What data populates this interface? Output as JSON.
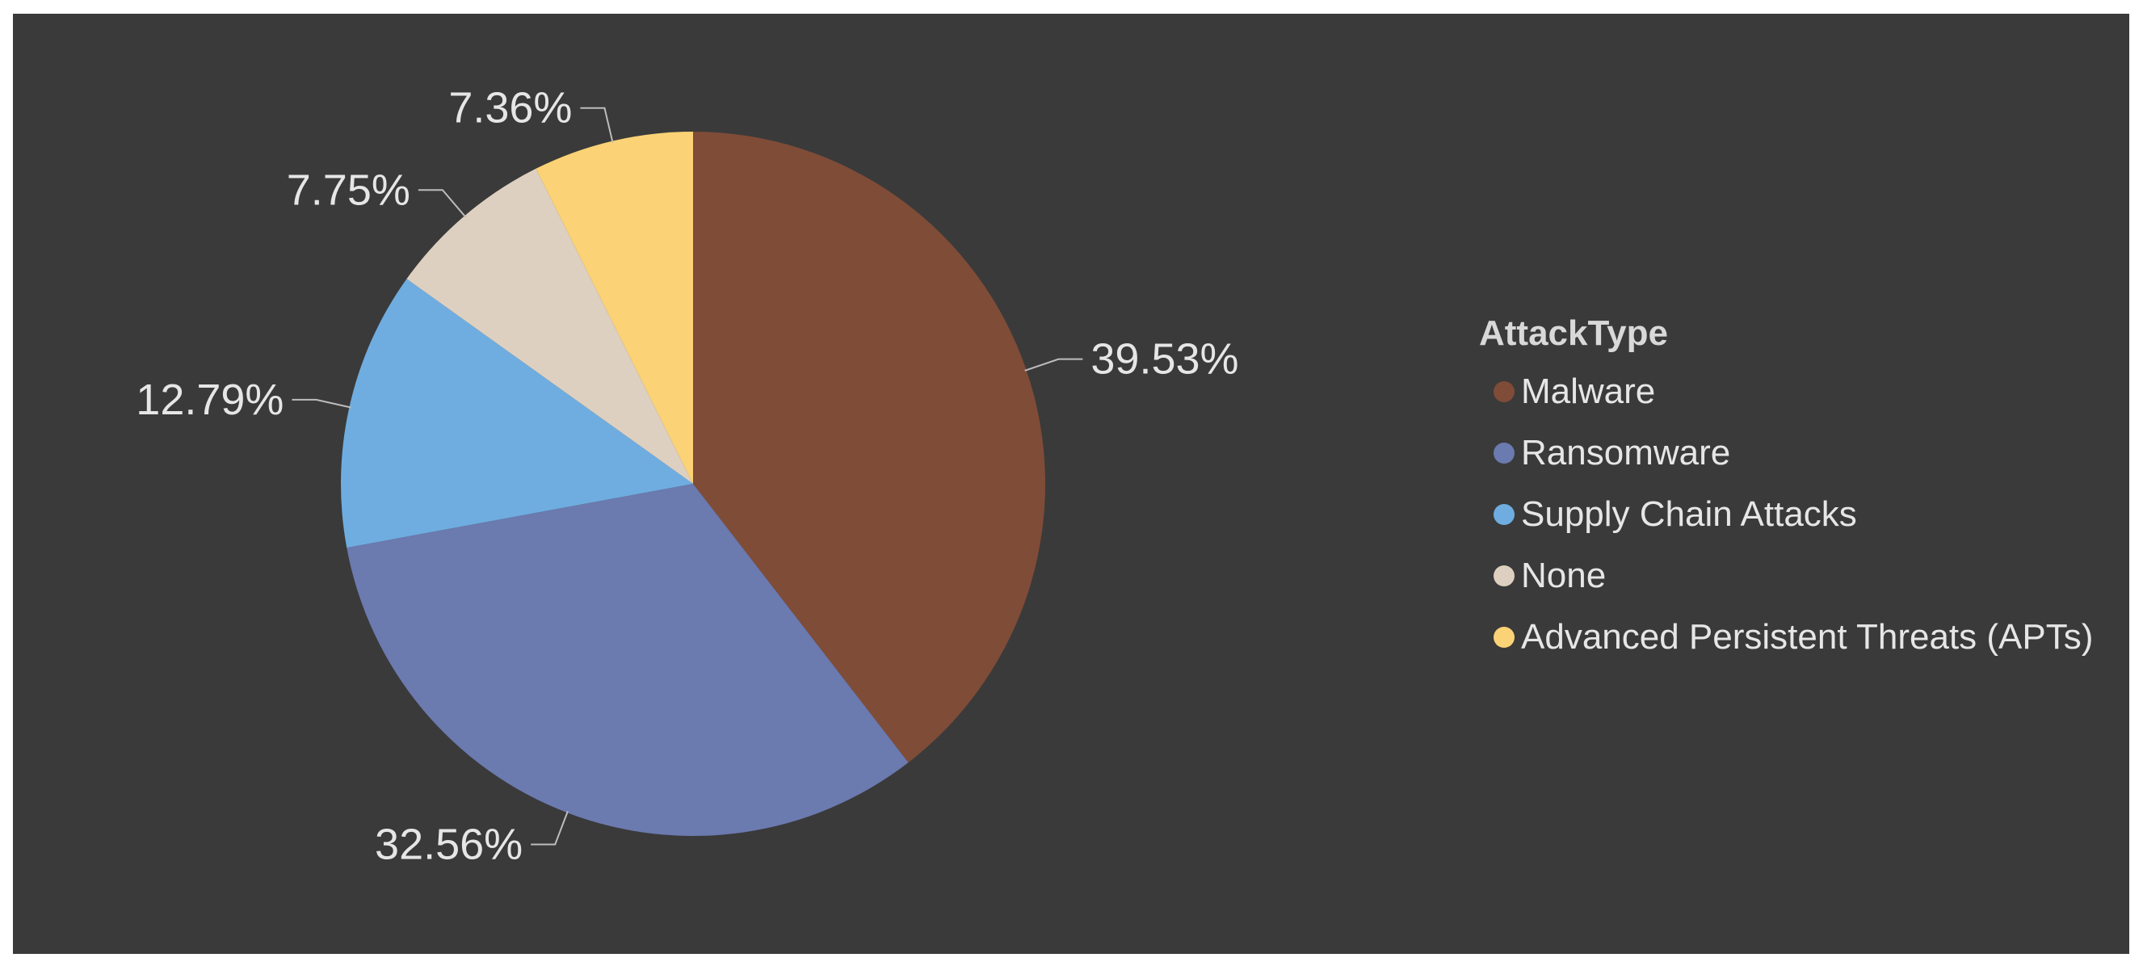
{
  "chart_data": {
    "type": "pie",
    "legend_title": "AttackType",
    "legend_position": "right",
    "slices": [
      {
        "name": "Malware",
        "value": 39.53,
        "label": "39.53%",
        "color": "#7f4c38"
      },
      {
        "name": "Ransomware",
        "value": 32.56,
        "label": "32.56%",
        "color": "#6b7aaf"
      },
      {
        "name": "Supply Chain Attacks",
        "value": 12.79,
        "label": "12.79%",
        "color": "#6fade0"
      },
      {
        "name": "None",
        "value": 7.75,
        "label": "7.75%",
        "color": "#ded0c0"
      },
      {
        "name": "Advanced Persistent Threats (APTs)",
        "value": 7.36,
        "label": "7.36%",
        "color": "#fbd275"
      }
    ]
  },
  "colors": {
    "background": "#3a3a3a",
    "text": "#e6e6e6"
  }
}
